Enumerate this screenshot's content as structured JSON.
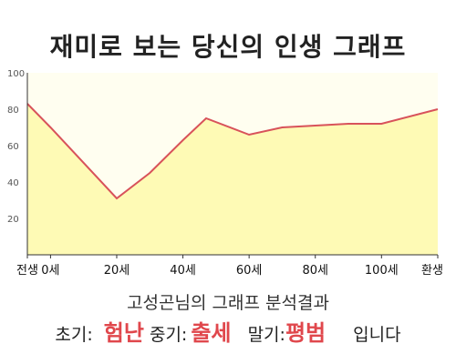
{
  "colors": {
    "line": "#d8525a",
    "fill": "#fefab5",
    "plot_bg": "#fffef0",
    "accent": "#e0474c"
  },
  "chart_data": {
    "type": "area",
    "title": "재미로 보는 당신의 인생 그래프",
    "x": [
      -7,
      0,
      20,
      30,
      40,
      47,
      60,
      70,
      80,
      90,
      100,
      117
    ],
    "values": [
      83,
      70,
      31,
      45,
      63,
      75,
      66,
      70,
      71,
      72,
      72,
      80
    ],
    "ylim": [
      0,
      100
    ],
    "yticks": [
      20,
      40,
      60,
      80,
      100
    ],
    "xticks": [
      {
        "x": -7,
        "label": "전생"
      },
      {
        "x": 0,
        "label": "0세"
      },
      {
        "x": 20,
        "label": "20세"
      },
      {
        "x": 40,
        "label": "40세"
      },
      {
        "x": 60,
        "label": "60세"
      },
      {
        "x": 80,
        "label": "80세"
      },
      {
        "x": 100,
        "label": "100세"
      },
      {
        "x": 117,
        "label": "환생"
      }
    ],
    "grid": false
  },
  "summary": {
    "heading": "고성곤님의 그래프 분석결과",
    "early_label": "초기:",
    "early_value": "험난",
    "mid_label": "중기:",
    "mid_value": "출세",
    "late_label": "말기:",
    "late_value": "평범",
    "ending": "입니다"
  }
}
